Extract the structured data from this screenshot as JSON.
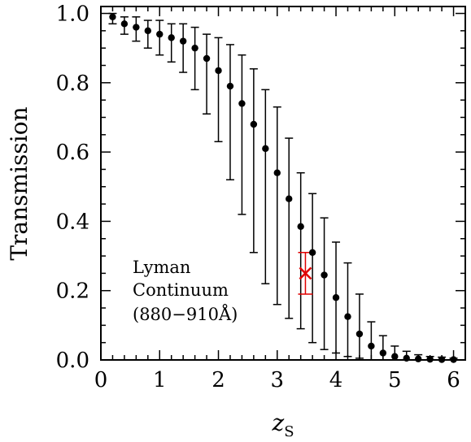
{
  "chart_data": {
    "type": "scatter",
    "title": "",
    "xlabel": "z",
    "xlabel_subscript": "S",
    "ylabel": "Transmission",
    "xlim": [
      0,
      6.2
    ],
    "ylim": [
      0,
      1.02
    ],
    "x_ticks": [
      0,
      1,
      2,
      3,
      4,
      5,
      6
    ],
    "x_tick_labels": [
      "0",
      "1",
      "2",
      "3",
      "4",
      "5",
      "6"
    ],
    "y_ticks": [
      0.0,
      0.2,
      0.4,
      0.6,
      0.8,
      1.0
    ],
    "y_tick_labels": [
      "0.0",
      "0.2",
      "0.4",
      "0.6",
      "0.8",
      "1.0"
    ],
    "x_minor_step": 0.2,
    "y_minor_step": 0.05,
    "grid": false,
    "annotation": [
      "Lyman",
      "Continuum",
      "(880−910Å)"
    ],
    "series": [
      {
        "marker": "dot",
        "color": "#000000",
        "points": [
          {
            "x": 0.2,
            "y": 0.99,
            "lo": 0.97,
            "hi": 1.0
          },
          {
            "x": 0.4,
            "y": 0.97,
            "lo": 0.94,
            "hi": 0.99
          },
          {
            "x": 0.6,
            "y": 0.96,
            "lo": 0.92,
            "hi": 0.99
          },
          {
            "x": 0.8,
            "y": 0.95,
            "lo": 0.9,
            "hi": 0.98
          },
          {
            "x": 1.0,
            "y": 0.94,
            "lo": 0.88,
            "hi": 0.98
          },
          {
            "x": 1.2,
            "y": 0.93,
            "lo": 0.86,
            "hi": 0.97
          },
          {
            "x": 1.4,
            "y": 0.92,
            "lo": 0.83,
            "hi": 0.97
          },
          {
            "x": 1.6,
            "y": 0.9,
            "lo": 0.78,
            "hi": 0.96
          },
          {
            "x": 1.8,
            "y": 0.87,
            "lo": 0.71,
            "hi": 0.94
          },
          {
            "x": 2.0,
            "y": 0.835,
            "lo": 0.63,
            "hi": 0.93
          },
          {
            "x": 2.2,
            "y": 0.79,
            "lo": 0.52,
            "hi": 0.91
          },
          {
            "x": 2.4,
            "y": 0.74,
            "lo": 0.42,
            "hi": 0.88
          },
          {
            "x": 2.6,
            "y": 0.68,
            "lo": 0.31,
            "hi": 0.84
          },
          {
            "x": 2.8,
            "y": 0.61,
            "lo": 0.22,
            "hi": 0.78
          },
          {
            "x": 3.0,
            "y": 0.54,
            "lo": 0.16,
            "hi": 0.73
          },
          {
            "x": 3.2,
            "y": 0.465,
            "lo": 0.12,
            "hi": 0.64
          },
          {
            "x": 3.4,
            "y": 0.385,
            "lo": 0.09,
            "hi": 0.54
          },
          {
            "x": 3.6,
            "y": 0.31,
            "lo": 0.05,
            "hi": 0.48
          },
          {
            "x": 3.8,
            "y": 0.245,
            "lo": 0.03,
            "hi": 0.41
          },
          {
            "x": 4.0,
            "y": 0.18,
            "lo": 0.02,
            "hi": 0.34
          },
          {
            "x": 4.2,
            "y": 0.125,
            "lo": 0.01,
            "hi": 0.28
          },
          {
            "x": 4.4,
            "y": 0.075,
            "lo": 0.005,
            "hi": 0.19
          },
          {
            "x": 4.6,
            "y": 0.04,
            "lo": 0.0,
            "hi": 0.11
          },
          {
            "x": 4.8,
            "y": 0.02,
            "lo": 0.0,
            "hi": 0.07
          },
          {
            "x": 5.0,
            "y": 0.01,
            "lo": 0.0,
            "hi": 0.04
          },
          {
            "x": 5.2,
            "y": 0.005,
            "lo": 0.0,
            "hi": 0.025
          },
          {
            "x": 5.4,
            "y": 0.003,
            "lo": 0.0,
            "hi": 0.015
          },
          {
            "x": 5.6,
            "y": 0.002,
            "lo": 0.0,
            "hi": 0.01
          },
          {
            "x": 5.8,
            "y": 0.001,
            "lo": 0.0,
            "hi": 0.008
          },
          {
            "x": 6.0,
            "y": 0.001,
            "lo": 0.0,
            "hi": 0.005
          }
        ]
      },
      {
        "marker": "x",
        "color": "#e00000",
        "points": [
          {
            "x": 3.48,
            "y": 0.25,
            "lo": 0.19,
            "hi": 0.31
          }
        ]
      }
    ]
  }
}
